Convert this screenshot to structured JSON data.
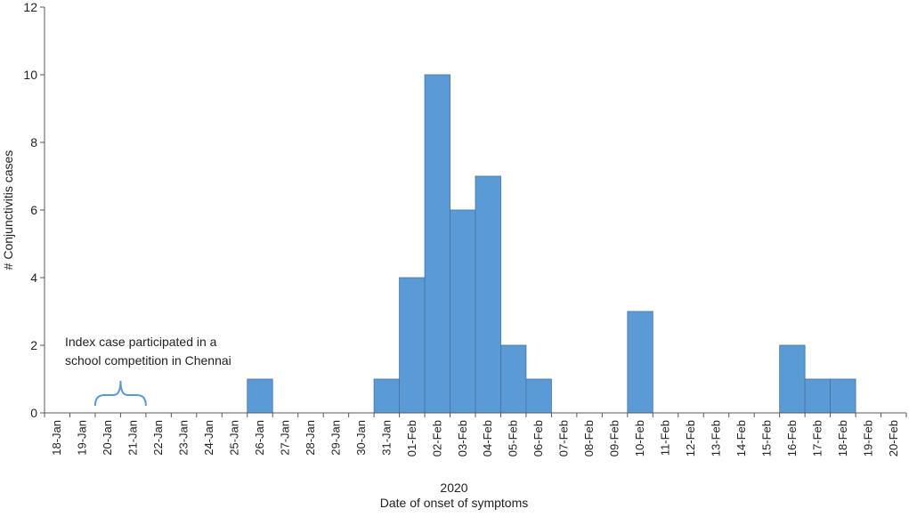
{
  "chart_data": {
    "type": "bar",
    "categories": [
      "18-Jan",
      "19-Jan",
      "20-Jan",
      "21-Jan",
      "22-Jan",
      "23-Jan",
      "24-Jan",
      "25-Jan",
      "26-Jan",
      "27-Jan",
      "28-Jan",
      "29-Jan",
      "30-Jan",
      "31-Jan",
      "01-Feb",
      "02-Feb",
      "03-Feb",
      "04-Feb",
      "05-Feb",
      "06-Feb",
      "07-Feb",
      "08-Feb",
      "09-Feb",
      "10-Feb",
      "11-Feb",
      "12-Feb",
      "13-Feb",
      "14-Feb",
      "15-Feb",
      "16-Feb",
      "17-Feb",
      "18-Feb",
      "19-Feb",
      "20-Feb"
    ],
    "values": [
      0,
      0,
      0,
      0,
      0,
      0,
      0,
      0,
      1,
      0,
      0,
      0,
      0,
      1,
      4,
      10,
      6,
      7,
      2,
      1,
      0,
      0,
      0,
      3,
      0,
      0,
      0,
      0,
      0,
      2,
      1,
      1,
      0,
      0
    ],
    "ylabel": "# Conjunctivitis cases",
    "xlabel_year": "2020",
    "xlabel": "Date of onset of symptoms",
    "ylim": [
      0,
      12
    ],
    "yticks": [
      0,
      2,
      4,
      6,
      8,
      10,
      12
    ],
    "grid": false,
    "bar_color": "#5b9bd5",
    "bar_edge_color": "#4472a8",
    "annotation": {
      "lines": [
        "Index case participated in a",
        "school competition in Chennai"
      ],
      "bracket_from": "20-Jan",
      "bracket_to": "21-Jan",
      "bracket_color": "#5b9bd5"
    }
  }
}
